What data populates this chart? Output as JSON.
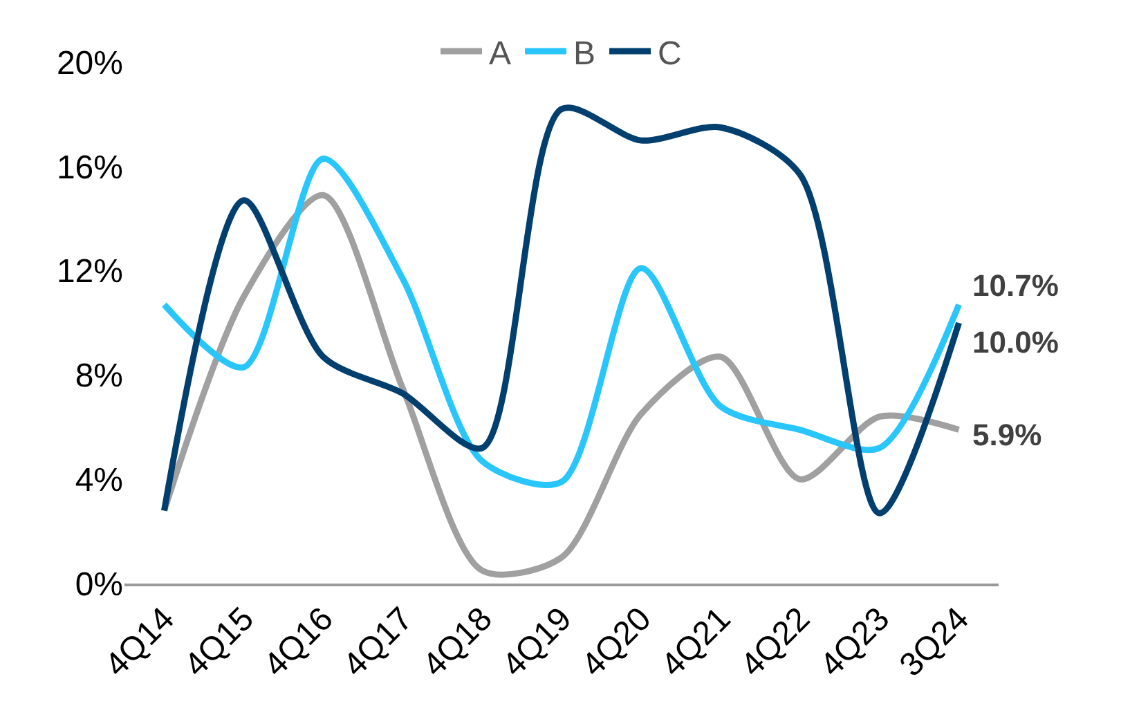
{
  "chart_data": {
    "type": "line",
    "categories": [
      "4Q14",
      "4Q15",
      "4Q16",
      "4Q17",
      "4Q18",
      "4Q19",
      "4Q20",
      "4Q21",
      "4Q22",
      "4Q23",
      "3Q24"
    ],
    "series": [
      {
        "name": "A",
        "color": "#a0a0a0",
        "values": [
          2.8,
          11.0,
          14.9,
          7.5,
          0.5,
          1.0,
          6.5,
          8.7,
          4.0,
          6.4,
          5.9
        ],
        "value_labels": [
          null,
          null,
          null,
          null,
          null,
          null,
          null,
          null,
          null,
          null,
          "5.9%"
        ]
      },
      {
        "name": "B",
        "color": "#29c6fc",
        "values": [
          10.7,
          8.3,
          16.3,
          11.7,
          4.7,
          3.9,
          12.1,
          6.8,
          5.9,
          5.2,
          10.7
        ],
        "value_labels": [
          null,
          null,
          null,
          null,
          null,
          null,
          null,
          null,
          null,
          null,
          "10.7%"
        ]
      },
      {
        "name": "C",
        "color": "#003f6e",
        "values": [
          2.8,
          14.7,
          8.7,
          7.3,
          5.2,
          18.2,
          17.0,
          17.5,
          15.7,
          2.7,
          10.0
        ],
        "value_labels": [
          null,
          null,
          null,
          null,
          null,
          null,
          null,
          null,
          null,
          null,
          "10.0%"
        ]
      }
    ],
    "ylim": [
      0,
      20
    ],
    "yticks": [
      {
        "value": 0,
        "label": "0%"
      },
      {
        "value": 4,
        "label": "4%"
      },
      {
        "value": 8,
        "label": "8%"
      },
      {
        "value": 12,
        "label": "12%"
      },
      {
        "value": 16,
        "label": "16%"
      },
      {
        "value": 20,
        "label": "20%"
      }
    ],
    "legend": "top",
    "marker": "none",
    "line_style": "solid"
  }
}
